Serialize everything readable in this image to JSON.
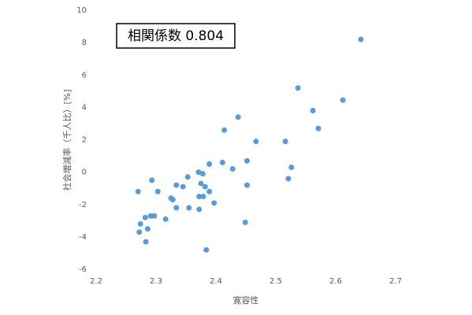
{
  "chart_data": {
    "type": "scatter",
    "annotation": "相関係数 0.804",
    "x_label": "寛容性",
    "y_label": "社会増減率（千人比）[%]",
    "color": "#5b9bd5",
    "xlim": [
      2.2,
      2.7
    ],
    "xticks": [
      2.2,
      2.3,
      2.4,
      2.5,
      2.6,
      2.7
    ],
    "ylim": [
      -6,
      10
    ],
    "yticks": [
      -6,
      -4,
      -2,
      0,
      2,
      4,
      6,
      8,
      10
    ],
    "x": [
      2.642,
      2.537,
      2.612,
      2.562,
      2.571,
      2.437,
      2.414,
      2.467,
      2.516,
      2.411,
      2.452,
      2.428,
      2.526,
      2.389,
      2.371,
      2.378,
      2.353,
      2.521,
      2.452,
      2.293,
      2.334,
      2.345,
      2.375,
      2.382,
      2.27,
      2.303,
      2.325,
      2.328,
      2.389,
      2.372,
      2.379,
      2.397,
      2.334,
      2.355,
      2.372,
      2.282,
      2.291,
      2.297,
      2.316,
      2.274,
      2.286,
      2.449,
      2.272,
      2.283,
      2.384
    ],
    "values": [
      8.2,
      5.2,
      4.45,
      3.8,
      2.7,
      3.4,
      2.6,
      1.9,
      1.9,
      0.6,
      0.7,
      0.2,
      0.3,
      0.5,
      0.0,
      -0.1,
      -0.3,
      -0.4,
      -0.8,
      -0.5,
      -0.8,
      -0.9,
      -0.7,
      -0.9,
      -1.2,
      -1.2,
      -1.6,
      -1.7,
      -1.2,
      -1.5,
      -1.5,
      -1.9,
      -2.2,
      -2.2,
      -2.3,
      -2.8,
      -2.7,
      -2.7,
      -2.9,
      -3.2,
      -3.5,
      -3.1,
      -3.7,
      -4.3,
      -4.8
    ]
  }
}
